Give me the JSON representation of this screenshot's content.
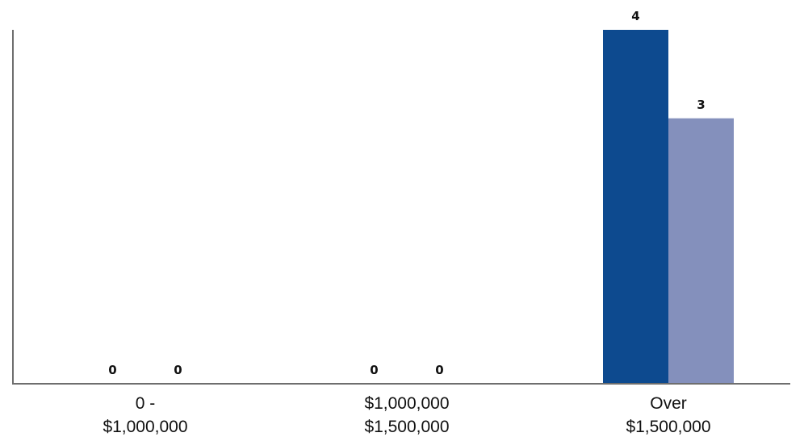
{
  "chart_data": {
    "type": "bar",
    "categories": [
      [
        "0 -",
        "$1,000,000"
      ],
      [
        "$1,000,000",
        "$1,500,000"
      ],
      [
        "Over",
        "$1,500,000"
      ]
    ],
    "series": [
      {
        "values": [
          0,
          0,
          4
        ],
        "color": "#0d4a8f"
      },
      {
        "values": [
          0,
          0,
          3
        ],
        "color": "#8490bc"
      }
    ],
    "data_labels": [
      [
        "0",
        "0",
        "4"
      ],
      [
        "0",
        "0",
        "3"
      ]
    ],
    "ylim": [
      0,
      4
    ],
    "grid": false,
    "legend": "none"
  }
}
